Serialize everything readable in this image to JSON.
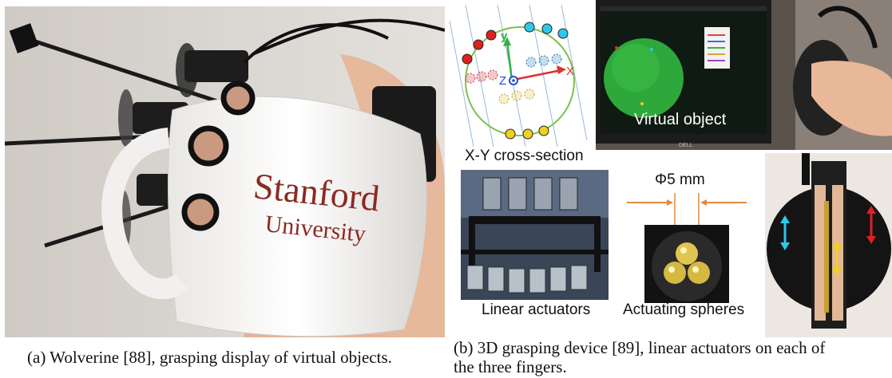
{
  "mug_text": {
    "line1": "Stanford",
    "line2": "University"
  },
  "cross_section": {
    "label": "X-Y cross-section",
    "axis_x": "X",
    "axis_y": "y",
    "axis_z": "Z"
  },
  "photo_monitor": {
    "label": "Virtual object",
    "brand": "DELL"
  },
  "photo_actuators": {
    "label": "Linear actuators"
  },
  "photo_spheres": {
    "label": "Actuating spheres",
    "dimension": "Φ5 mm"
  },
  "captions": {
    "a": "(a) Wolverine [88], grasping display of virtual objects.",
    "b_line1": "(b) 3D grasping device [89], linear actuators on each of",
    "b_line2": "the three fingers."
  },
  "colors": {
    "red": "#e02020",
    "cyan": "#30c8e8",
    "yellow": "#f0d020",
    "green_circle": "#7cc04a",
    "axis_red": "#e03030",
    "axis_green": "#30b040",
    "axis_blue": "#2050d0",
    "mug_text": "#8a2a22",
    "sphere": "#e8d040"
  }
}
